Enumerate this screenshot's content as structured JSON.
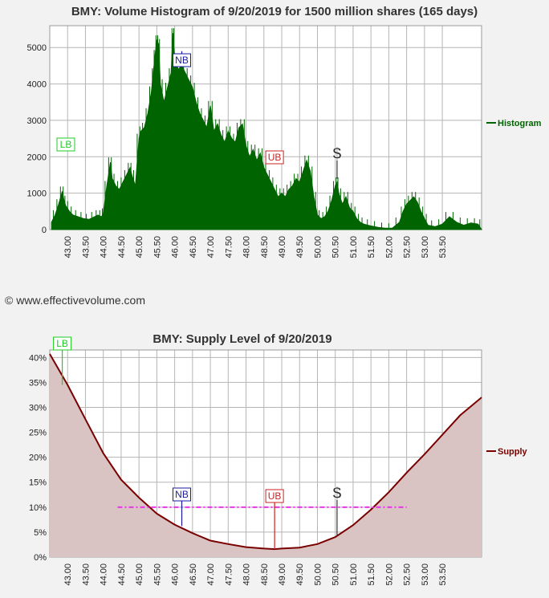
{
  "copyright": "© www.effectivevolume.com",
  "chart_data": [
    {
      "type": "area",
      "title": "BMY: Volume Histogram of 9/20/2019 for 1500 million shares (165 days)",
      "xlabel": "",
      "ylabel": "",
      "x_ticks": [
        "43.00",
        "43.50",
        "44.00",
        "44.50",
        "45.00",
        "45.50",
        "46.00",
        "46.50",
        "47.00",
        "47.50",
        "48.00",
        "48.50",
        "49.00",
        "49.50",
        "50.00",
        "50.50",
        "51.00",
        "51.50",
        "52.00",
        "52.50",
        "53.00",
        "53.50"
      ],
      "y_ticks": [
        "0",
        "1000",
        "2000",
        "3000",
        "4000",
        "5000"
      ],
      "xlim": [
        42.5,
        54.6
      ],
      "ylim": [
        0,
        5600
      ],
      "grid": true,
      "legend": "right",
      "series": [
        {
          "name": "Histogram",
          "color": "#006400",
          "x": [
            42.55,
            42.65,
            42.75,
            42.85,
            42.9,
            42.95,
            43.05,
            43.15,
            43.3,
            43.45,
            43.6,
            43.75,
            43.85,
            43.95,
            44.0,
            44.1,
            44.2,
            44.25,
            44.35,
            44.45,
            44.55,
            44.65,
            44.75,
            44.8,
            44.9,
            45.0,
            45.05,
            45.15,
            45.25,
            45.35,
            45.4,
            45.45,
            45.5,
            45.55,
            45.6,
            45.7,
            45.8,
            45.9,
            45.95,
            46.0,
            46.1,
            46.2,
            46.3,
            46.4,
            46.5,
            46.6,
            46.7,
            46.8,
            46.9,
            47.0,
            47.1,
            47.2,
            47.3,
            47.4,
            47.5,
            47.6,
            47.7,
            47.8,
            47.9,
            48.0,
            48.1,
            48.2,
            48.3,
            48.4,
            48.5,
            48.6,
            48.7,
            48.8,
            48.9,
            49.0,
            49.1,
            49.2,
            49.3,
            49.4,
            49.5,
            49.6,
            49.7,
            49.8,
            49.9,
            50.0,
            50.1,
            50.2,
            50.3,
            50.4,
            50.5,
            50.55,
            50.6,
            50.7,
            50.8,
            50.9,
            51.0,
            51.1,
            51.2,
            51.3,
            51.5,
            51.7,
            51.9,
            52.1,
            52.3,
            52.4,
            52.5,
            52.6,
            52.7,
            52.8,
            52.9,
            53.0,
            53.1,
            53.3,
            53.5,
            53.7,
            53.9,
            54.1,
            54.3,
            54.5,
            54.6
          ],
          "y": [
            200,
            400,
            700,
            1050,
            800,
            650,
            500,
            400,
            350,
            300,
            280,
            350,
            400,
            350,
            450,
            1200,
            1850,
            1400,
            1200,
            1100,
            1300,
            1500,
            1700,
            1500,
            1200,
            2500,
            2700,
            2800,
            3200,
            3800,
            4300,
            4800,
            5200,
            5100,
            4000,
            3500,
            3900,
            4300,
            5400,
            4700,
            4400,
            4500,
            4300,
            4100,
            3900,
            3500,
            3200,
            3000,
            2800,
            3400,
            2700,
            2900,
            2600,
            2400,
            2700,
            2500,
            2400,
            2800,
            2900,
            2300,
            2000,
            2200,
            1900,
            2100,
            1700,
            1500,
            1300,
            1100,
            900,
            1000,
            900,
            1100,
            1200,
            1400,
            1300,
            1600,
            1900,
            1600,
            900,
            400,
            300,
            350,
            500,
            800,
            1200,
            1300,
            1000,
            700,
            900,
            600,
            500,
            300,
            200,
            150,
            100,
            60,
            40,
            40,
            200,
            500,
            700,
            800,
            900,
            750,
            500,
            300,
            120,
            80,
            150,
            350,
            200,
            120,
            180,
            150,
            0
          ]
        }
      ],
      "annotations": [
        {
          "label": "LB",
          "x": 42.95,
          "y": 2300,
          "color": "#22cc22"
        },
        {
          "label": "NB",
          "x": 46.2,
          "y": 4900,
          "color": "#1a1aa0"
        },
        {
          "label": "UB",
          "x": 48.8,
          "y": 2000,
          "color": "#cc2222"
        },
        {
          "label": "$",
          "x": 50.55,
          "y": 2200,
          "color": "#333333"
        }
      ]
    },
    {
      "type": "area",
      "title": "BMY: Supply Level of 9/20/2019",
      "xlabel": "",
      "ylabel": "",
      "x_ticks": [
        "43.00",
        "43.50",
        "44.00",
        "44.50",
        "45.00",
        "45.50",
        "46.00",
        "46.50",
        "47.00",
        "47.50",
        "48.00",
        "48.50",
        "49.00",
        "49.50",
        "50.00",
        "50.50",
        "51.00",
        "51.50",
        "52.00",
        "52.50",
        "53.00",
        "53.50"
      ],
      "y_ticks": [
        "0%",
        "5%",
        "10%",
        "15%",
        "20%",
        "25%",
        "30%",
        "35%",
        "40%"
      ],
      "xlim": [
        42.5,
        54.6
      ],
      "ylim": [
        0,
        41.5
      ],
      "grid": true,
      "legend": "right",
      "series": [
        {
          "name": "Supply",
          "color": "#7a0000",
          "x": [
            42.5,
            43.0,
            43.5,
            44.0,
            44.5,
            45.0,
            45.5,
            46.0,
            46.5,
            47.0,
            47.5,
            48.0,
            48.5,
            48.8,
            49.0,
            49.5,
            50.0,
            50.5,
            51.0,
            51.5,
            52.0,
            52.5,
            53.0,
            53.5,
            54.0,
            54.6
          ],
          "y": [
            40.7,
            34.5,
            27.6,
            20.8,
            15.5,
            11.9,
            8.7,
            6.5,
            4.8,
            3.3,
            2.6,
            2.0,
            1.7,
            1.6,
            1.7,
            1.9,
            2.6,
            4.0,
            6.4,
            9.5,
            13.0,
            16.9,
            20.6,
            24.5,
            28.4,
            32.0
          ]
        }
      ],
      "level_line": {
        "x_start": 44.4,
        "x_end": 52.5,
        "y": 10.0,
        "color": "#ee33ee"
      },
      "annotations": [
        {
          "label": "LB",
          "x": 42.85,
          "y": 40.7,
          "color": "#22cc22"
        },
        {
          "label": "NB",
          "x": 46.2,
          "y": 6.2,
          "color": "#1a1aa0"
        },
        {
          "label": "UB",
          "x": 48.8,
          "y": 1.6,
          "color": "#cc2222"
        },
        {
          "label": "$",
          "x": 50.55,
          "y": 4.2,
          "color": "#333333"
        }
      ]
    }
  ]
}
